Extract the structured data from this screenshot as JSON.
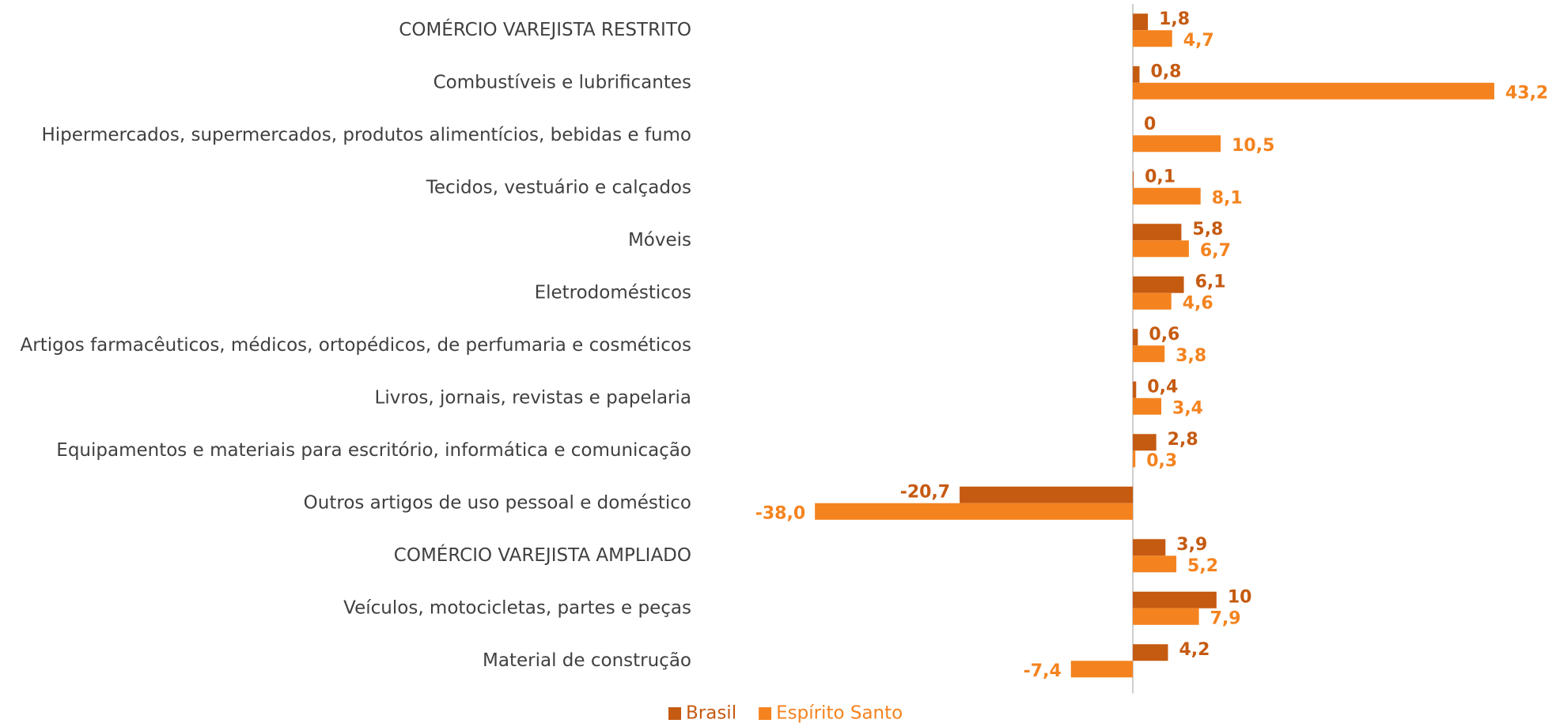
{
  "chart_data": {
    "type": "hbar",
    "categories": [
      "COMÉRCIO VAREJISTA RESTRITO",
      "Combustíveis e lubrificantes",
      "Hipermercados, supermercados, produtos alimentícios, bebidas e fumo",
      "Tecidos, vestuário e calçados",
      "Móveis",
      "Eletrodomésticos",
      "Artigos farmacêuticos, médicos, ortopédicos, de perfumaria e cosméticos",
      "Livros, jornais, revistas e papelaria",
      "Equipamentos e materiais para escritório, informática e comunicação",
      "Outros artigos de uso pessoal e doméstico",
      "COMÉRCIO VAREJISTA AMPLIADO",
      "Veículos, motocicletas, partes e peças",
      "Material de construção"
    ],
    "series": [
      {
        "name": "Brasil",
        "color": "#c55a11",
        "values": [
          1.8,
          0.8,
          0,
          0.1,
          5.8,
          6.1,
          0.6,
          0.4,
          2.8,
          -20.7,
          3.9,
          10,
          4.2
        ],
        "value_labels": [
          "1,8",
          "0,8",
          "0",
          "0,1",
          "5,8",
          "6,1",
          "0,6",
          "0,4",
          "2,8",
          "-20,7",
          "3,9",
          "10",
          "4,2"
        ]
      },
      {
        "name": "Espírito Santo",
        "color": "#f4831f",
        "values": [
          4.7,
          43.2,
          10.5,
          8.1,
          6.7,
          4.6,
          3.8,
          3.4,
          0.3,
          -38.0,
          5.2,
          7.9,
          -7.4
        ],
        "value_labels": [
          "4,7",
          "43,2",
          "10,5",
          "8,1",
          "6,7",
          "4,6",
          "3,8",
          "3,4",
          "0,3",
          "-38,0",
          "5,2",
          "7,9",
          "-7,4"
        ]
      }
    ],
    "xlim": [
      -40,
      45
    ],
    "legend": "bottom"
  }
}
